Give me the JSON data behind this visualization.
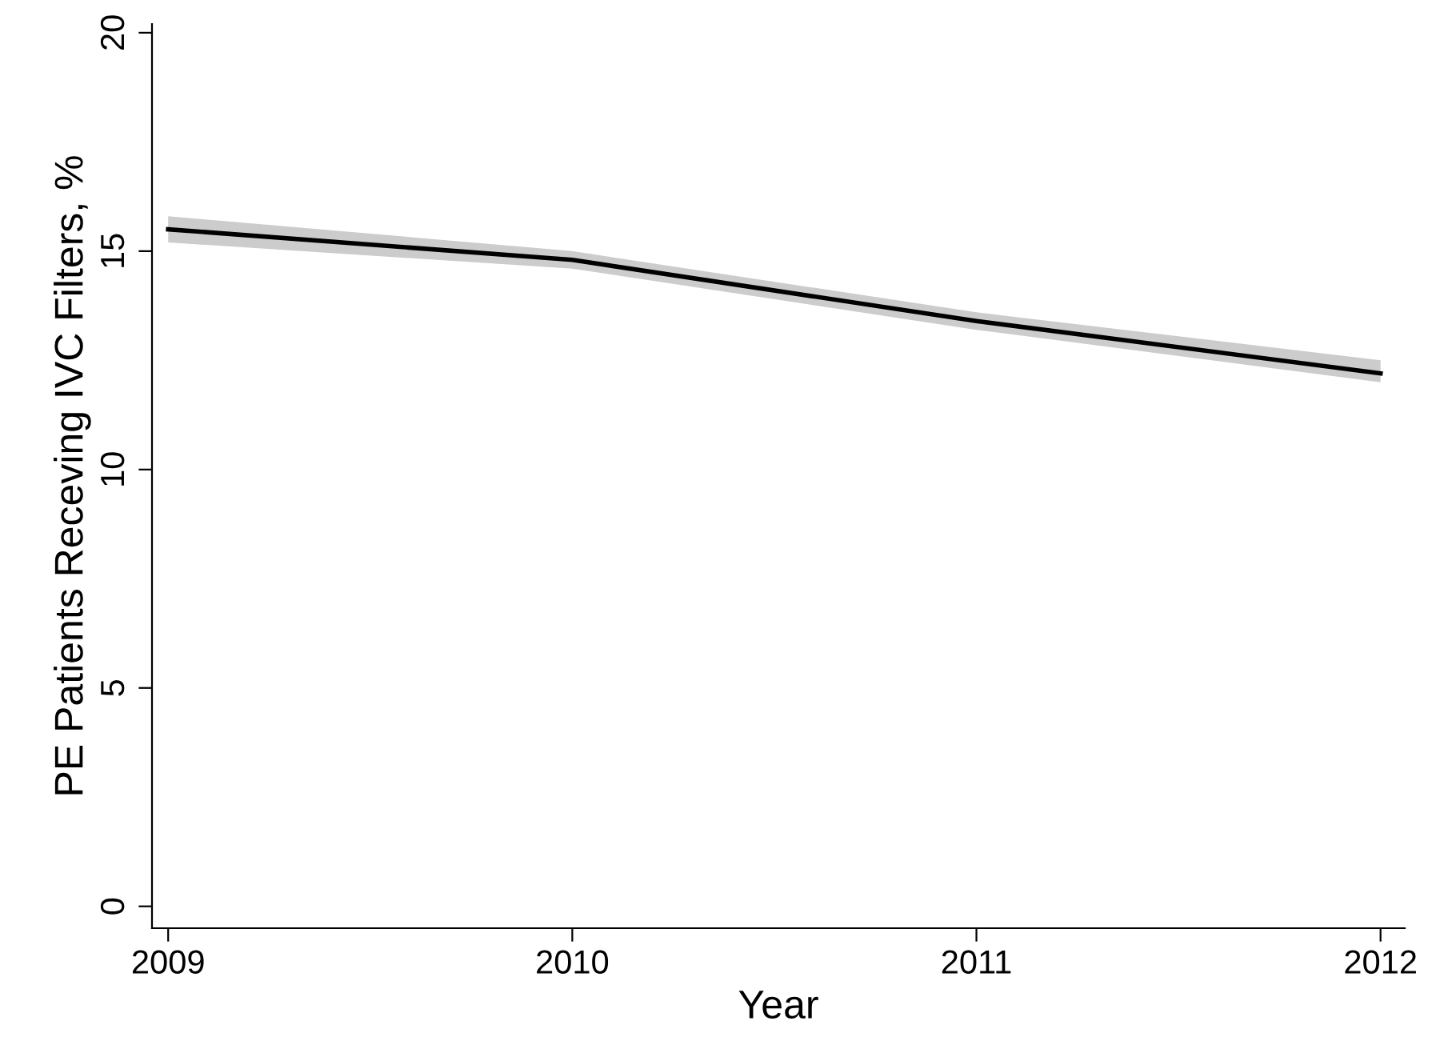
{
  "chart_data": {
    "type": "line",
    "xlabel": "Year",
    "ylabel": "PE Patients Receving IVC Filters, %",
    "x": [
      2009,
      2010,
      2011,
      2012
    ],
    "series": [
      {
        "color": "#000000",
        "values": [
          15.5,
          14.8,
          13.4,
          12.2
        ],
        "lower": [
          15.2,
          14.6,
          13.2,
          12.0
        ],
        "upper": [
          15.8,
          15.0,
          13.6,
          12.5
        ]
      }
    ],
    "xlim": [
      2008.96,
      2012.06
    ],
    "xticks": [
      2009,
      2010,
      2011,
      2012
    ],
    "ylim": [
      -0.5,
      20.2
    ],
    "yticks": [
      0,
      5,
      10,
      15,
      20
    ],
    "grid": false,
    "legend": false,
    "marker": "none",
    "line_style": "solid"
  }
}
